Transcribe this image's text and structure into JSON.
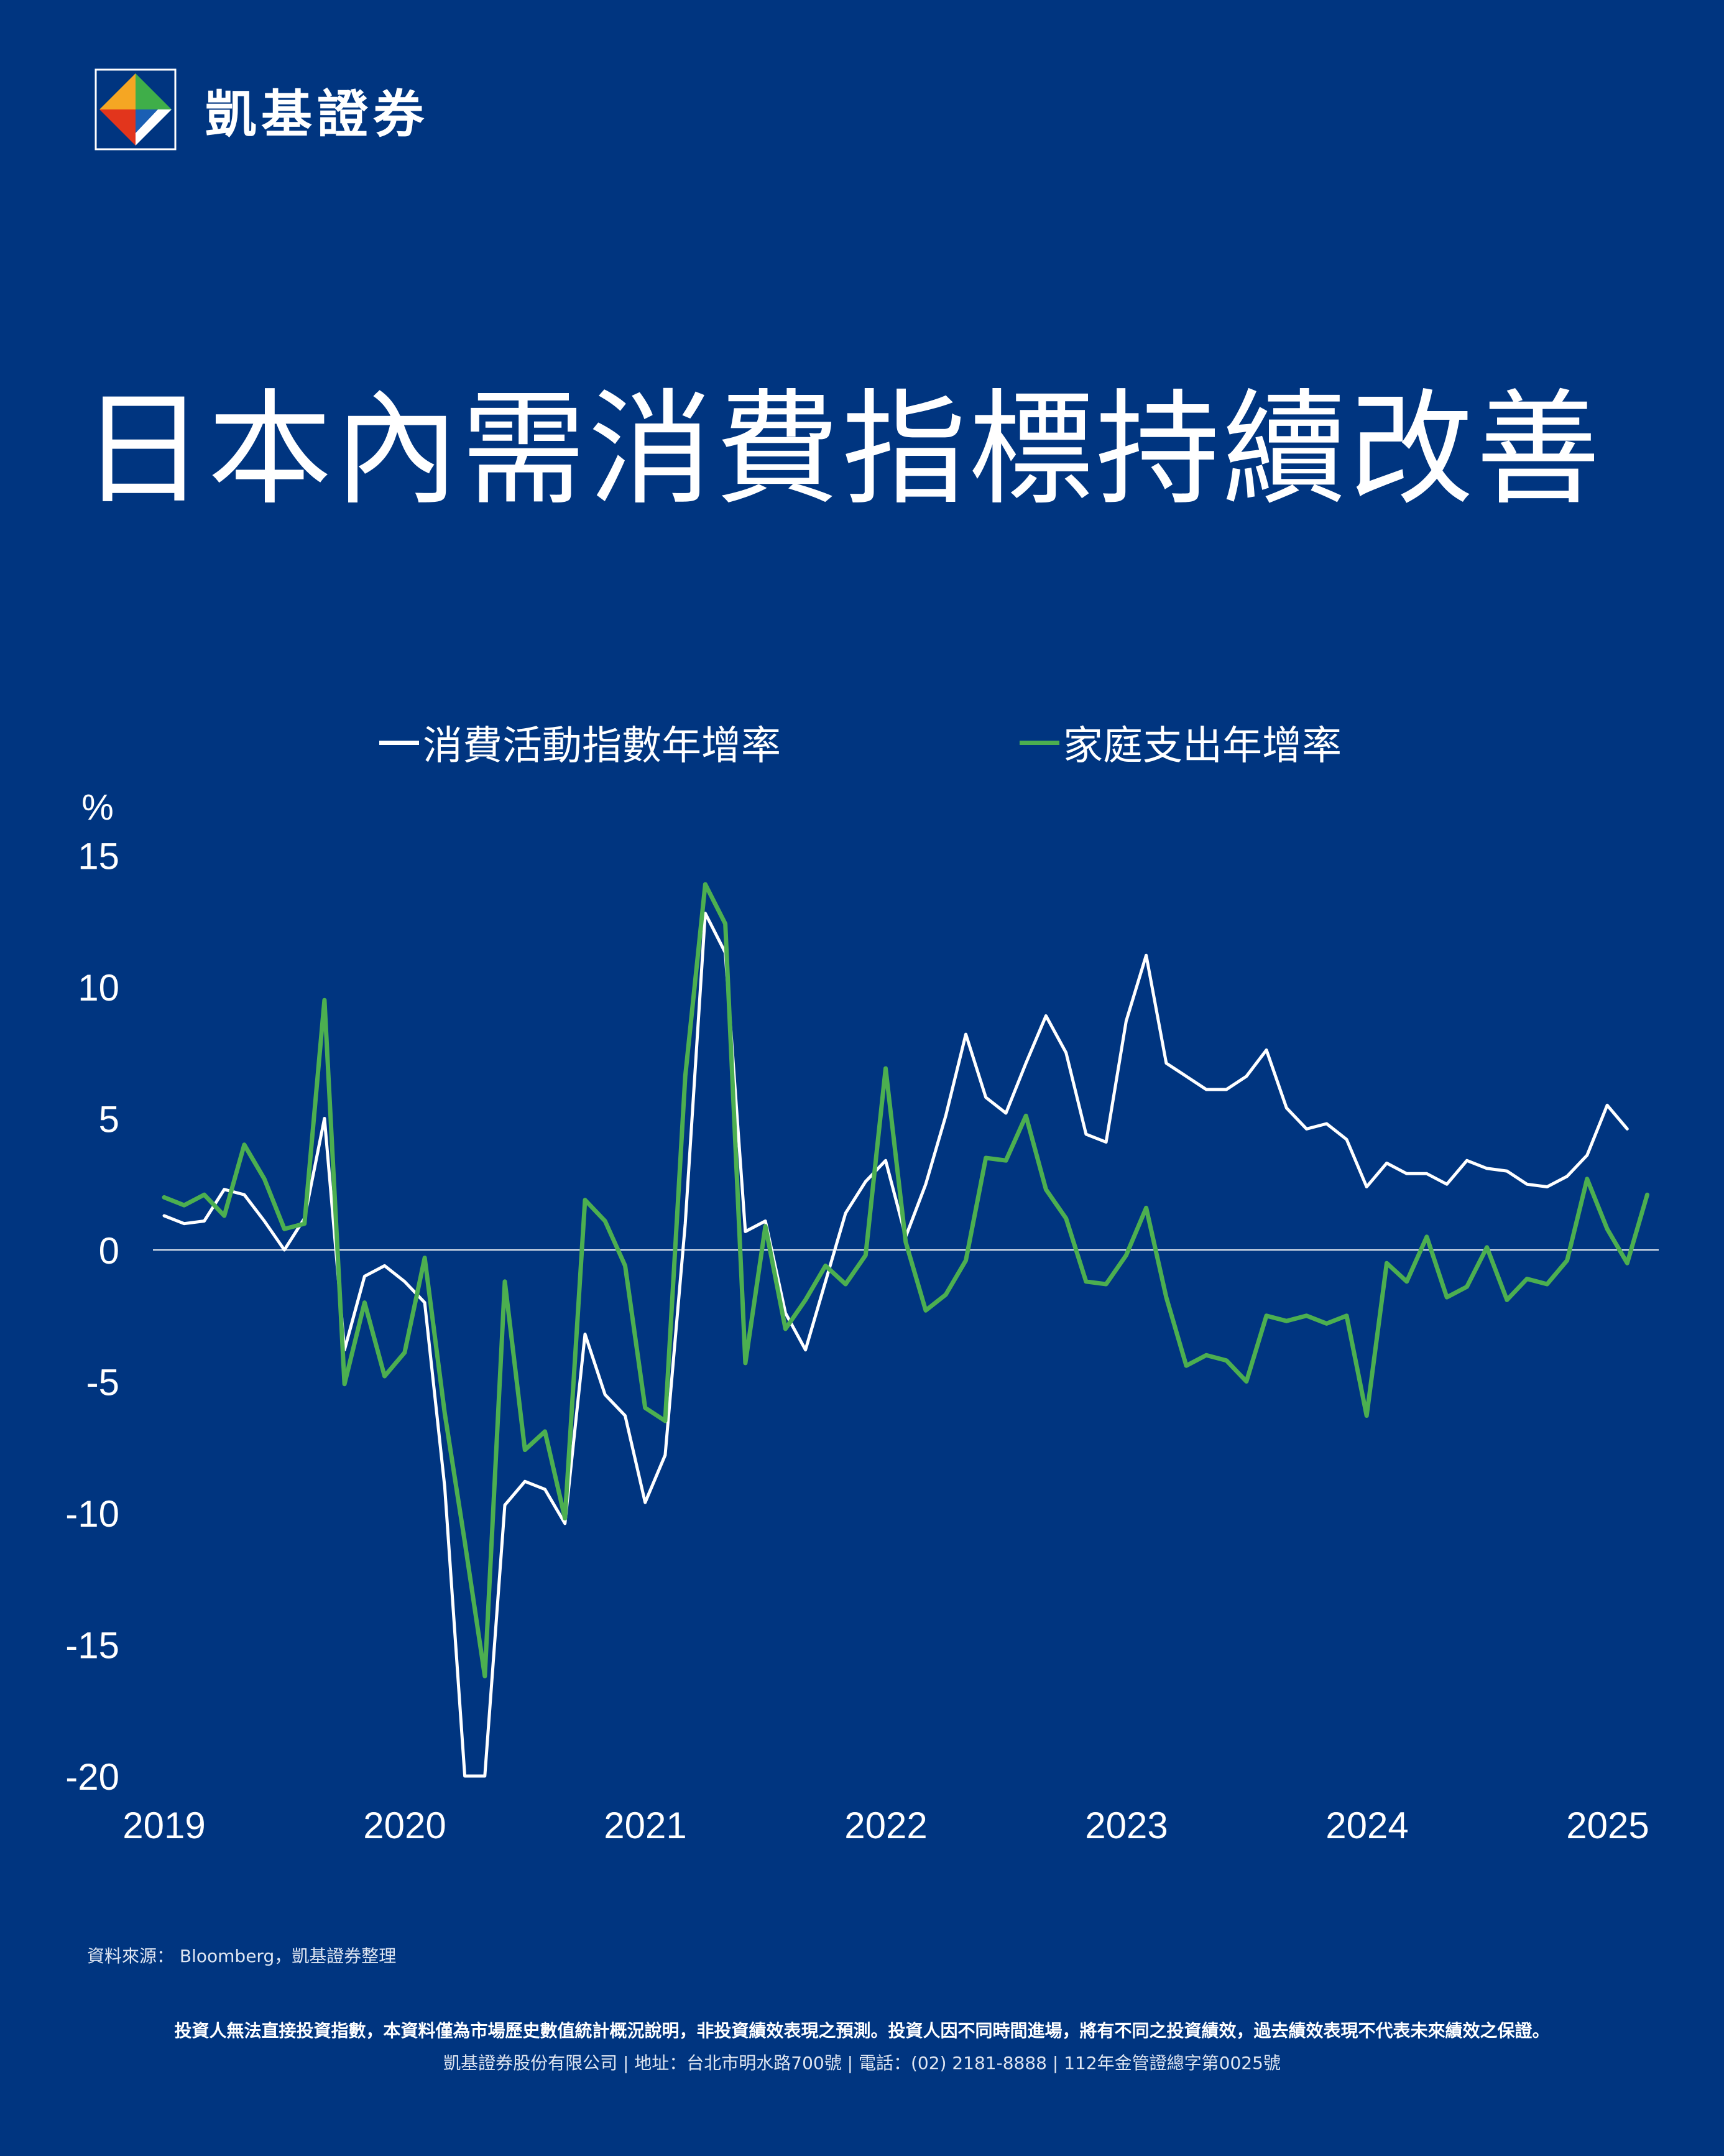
{
  "brand": {
    "name": "凱基證券",
    "logo_icon": "kgi-diamond-logo-icon"
  },
  "title": "日本內需消費指標持續改善",
  "chart_data": {
    "type": "line",
    "y_unit": "%",
    "ylim": [
      -20,
      15
    ],
    "y_ticks": [
      15,
      10,
      5,
      0,
      -5,
      -10,
      -15,
      -20
    ],
    "x_start": 2019.0,
    "x_step": 0.0833,
    "x_ticks": [
      "2019",
      "2020",
      "2021",
      "2022",
      "2023",
      "2024",
      "2025"
    ],
    "zero_line": true,
    "legend_position": "top",
    "series": [
      {
        "name": "消費活動指數年增率",
        "color": "#ffffff",
        "values": [
          1.3,
          1.0,
          1.1,
          2.3,
          2.1,
          1.1,
          0.0,
          1.2,
          5.0,
          -3.8,
          -1.0,
          -0.6,
          -1.2,
          -2.0,
          -9.0,
          -20.0,
          -20.0,
          -9.7,
          -8.8,
          -9.1,
          -10.4,
          -3.2,
          -5.5,
          -6.3,
          -9.6,
          -7.8,
          1.0,
          12.8,
          11.3,
          0.7,
          1.1,
          -2.4,
          -3.8,
          -1.2,
          1.4,
          2.6,
          3.4,
          0.5,
          2.5,
          5.1,
          8.2,
          5.8,
          5.2,
          7.1,
          8.9,
          7.5,
          4.4,
          4.1,
          8.7,
          11.2,
          7.1,
          6.6,
          6.1,
          6.1,
          6.6,
          7.6,
          5.4,
          4.6,
          4.8,
          4.2,
          2.4,
          3.3,
          2.9,
          2.9,
          2.5,
          3.4,
          3.1,
          3.0,
          2.5,
          2.4,
          2.8,
          3.6,
          5.5,
          4.6
        ],
        "end_index": 73
      },
      {
        "name": "家庭支出年增率",
        "color": "#4caf50",
        "values": [
          2.0,
          1.7,
          2.1,
          1.3,
          4.0,
          2.7,
          0.8,
          1.0,
          9.5,
          -5.1,
          -2.0,
          -4.8,
          -3.9,
          -0.3,
          -6.2,
          -11.1,
          -16.2,
          -1.2,
          -7.6,
          -6.9,
          -10.2,
          1.9,
          1.1,
          -0.6,
          -6.0,
          -6.5,
          6.6,
          13.9,
          12.4,
          -4.3,
          0.9,
          -3.0,
          -1.9,
          -0.6,
          -1.3,
          -0.2,
          6.9,
          0.3,
          -2.3,
          -1.7,
          -0.4,
          3.5,
          3.4,
          5.1,
          2.3,
          1.2,
          -1.2,
          -1.3,
          -0.2,
          1.6,
          -1.8,
          -4.4,
          -4.0,
          -4.2,
          -5.0,
          -2.5,
          -2.7,
          -2.5,
          -2.8,
          -2.5,
          -6.3,
          -0.5,
          -1.2,
          0.5,
          -1.8,
          -1.4,
          0.1,
          -1.9,
          -1.1,
          -1.3,
          -0.4,
          2.7,
          0.8,
          -0.5,
          2.1
        ],
        "end_index": 74
      }
    ]
  },
  "footer": {
    "source": "資料來源： Bloomberg，凱基證券整理",
    "disclaimer": "投資人無法直接投資指數，本資料僅為市場歷史數值統計概況說明，非投資績效表現之預測。投資人因不同時間進場，將有不同之投資績效，過去績效表現不代表未來績效之保證。",
    "company": "凱基證券股份有限公司 | 地址：台北市明水路700號 | 電話：(02) 2181-8888 | 112年金管證總字第0025號"
  }
}
